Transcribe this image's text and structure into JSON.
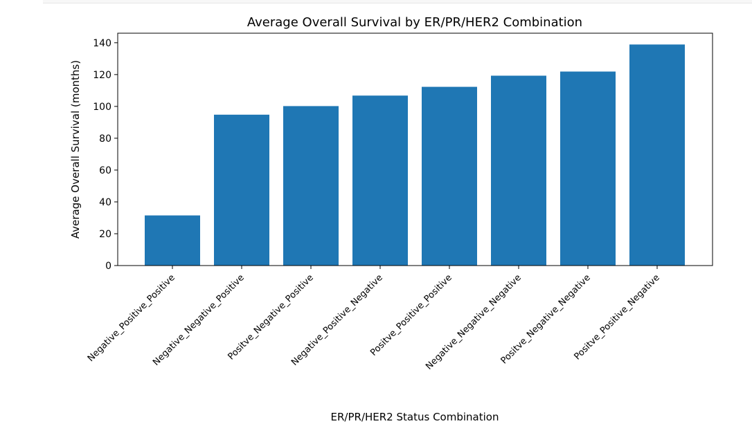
{
  "chart_data": {
    "type": "bar",
    "title": "Average Overall Survival by ER/PR/HER2 Combination",
    "xlabel": "ER/PR/HER2 Status Combination",
    "ylabel": "Average Overall Survival (months)",
    "categories": [
      "Negative_Positive_Positive",
      "Negative_Negative_Positive",
      "Positve_Negative_Positive",
      "Negative_Positive_Negative",
      "Positve_Positive_Positive",
      "Negative_Negative_Negative",
      "Positve_Negative_Negative",
      "Positve_Positive_Negative"
    ],
    "values": [
      31.5,
      94.8,
      100.2,
      106.8,
      112.3,
      119.3,
      121.9,
      138.9
    ],
    "ylim": [
      0,
      146
    ],
    "yticks": [
      0,
      20,
      40,
      60,
      80,
      100,
      120,
      140
    ],
    "bar_color": "#1f77b4",
    "grid": false,
    "legend": "none"
  }
}
